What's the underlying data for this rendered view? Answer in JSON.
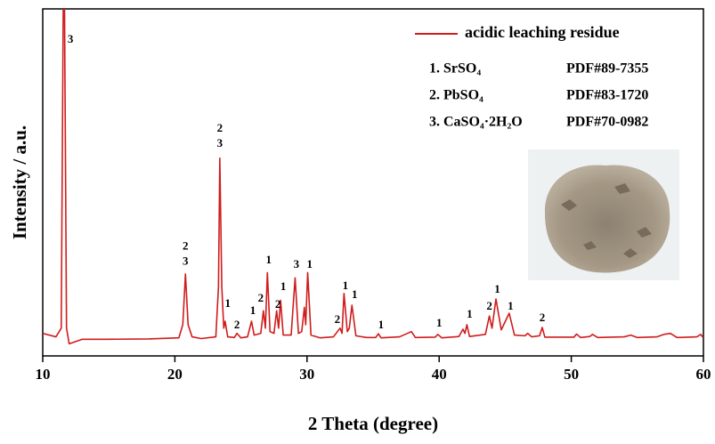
{
  "chart_data": {
    "type": "line",
    "xlabel": "2 Theta (degree)",
    "ylabel": "Intensity / a.u.",
    "xlim": [
      10,
      60
    ],
    "xticks": [
      10,
      20,
      30,
      40,
      50,
      60
    ],
    "ylim": [
      0,
      100
    ],
    "series": [
      {
        "name": "acidic leaching residue",
        "color": "#d01c1c",
        "x": [
          10,
          11.0,
          11.4,
          11.6,
          11.8,
          12.0,
          13,
          15,
          18,
          20.3,
          20.6,
          20.8,
          21.0,
          21.3,
          22,
          23.1,
          23.3,
          23.4,
          23.55,
          23.7,
          23.8,
          24.0,
          24.5,
          24.7,
          25.0,
          25.5,
          25.7,
          25.8,
          26.0,
          26.5,
          26.7,
          26.85,
          27.0,
          27.2,
          27.5,
          27.7,
          27.85,
          28.0,
          28.2,
          28.8,
          29.1,
          29.35,
          29.6,
          29.8,
          29.9,
          30.05,
          30.3,
          31,
          32,
          32.5,
          32.65,
          32.8,
          33.05,
          33.2,
          33.4,
          33.7,
          34.5,
          35.2,
          35.4,
          35.6,
          37,
          37.9,
          38.2,
          39.7,
          39.9,
          40.2,
          41.5,
          41.8,
          41.95,
          42.1,
          42.3,
          43.5,
          43.8,
          44.0,
          44.3,
          44.7,
          45.3,
          45.7,
          46.5,
          46.7,
          47.0,
          47.6,
          47.8,
          48.0,
          50.2,
          50.4,
          50.7,
          51.4,
          51.6,
          52.0,
          54.0,
          54.5,
          55.0,
          56.5,
          57.0,
          57.5,
          58.0,
          59.5,
          59.8,
          60
        ],
        "values": [
          6.5,
          5.5,
          8,
          130,
          8,
          3.5,
          4.8,
          4.8,
          4.9,
          5.2,
          9,
          23.6,
          9,
          5.5,
          5,
          5.5,
          20,
          57,
          20,
          8,
          10,
          5.5,
          5.3,
          6.5,
          5.2,
          5.5,
          8.5,
          10,
          6,
          6.5,
          13,
          8,
          24,
          7,
          6.5,
          13,
          8,
          16,
          6,
          6,
          22.5,
          6.5,
          7,
          14,
          9,
          24,
          6,
          5.2,
          5.5,
          8,
          6.5,
          18,
          7,
          8,
          14.6,
          5.8,
          5.3,
          5.3,
          6.4,
          5.2,
          5.5,
          7,
          5.3,
          5.4,
          6.2,
          5.2,
          5.6,
          7.7,
          6.5,
          9,
          5.6,
          6.2,
          11.5,
          8,
          16.4,
          7.5,
          12.3,
          6,
          5.8,
          6.5,
          5.5,
          5.8,
          8.2,
          5.4,
          5.4,
          6.3,
          5.3,
          5.6,
          6.2,
          5.3,
          5.5,
          6,
          5.3,
          5.5,
          6.2,
          6.5,
          5.3,
          5.5,
          6.2,
          5.2
        ]
      }
    ],
    "phases": [
      {
        "label": "1. SrSO₄",
        "pdf": "PDF#89-7355"
      },
      {
        "label": "2. PbSO₄",
        "pdf": "PDF#83-1720"
      },
      {
        "label": "3. CaSO₄·2H₂O",
        "pdf": "PDF#70-0982"
      }
    ],
    "annotations": [
      {
        "x": 12.1,
        "y": 91,
        "lines": [
          "3"
        ]
      },
      {
        "x": 20.8,
        "y": 27,
        "lines": [
          "2",
          "3"
        ]
      },
      {
        "x": 23.4,
        "y": 61,
        "lines": [
          "2",
          "3"
        ]
      },
      {
        "x": 24.0,
        "y": 14.9,
        "lines": [
          "1"
        ]
      },
      {
        "x": 24.7,
        "y": 8.7,
        "lines": [
          "2"
        ]
      },
      {
        "x": 25.9,
        "y": 12.8,
        "lines": [
          "1"
        ]
      },
      {
        "x": 26.5,
        "y": 16.4,
        "lines": [
          "2"
        ]
      },
      {
        "x": 27.1,
        "y": 27.4,
        "lines": [
          "1"
        ]
      },
      {
        "x": 27.8,
        "y": 14.6,
        "lines": [
          "2"
        ]
      },
      {
        "x": 28.2,
        "y": 19.7,
        "lines": [
          "1"
        ]
      },
      {
        "x": 29.2,
        "y": 26.2,
        "lines": [
          "3"
        ]
      },
      {
        "x": 30.2,
        "y": 26.2,
        "lines": [
          "1"
        ]
      },
      {
        "x": 32.3,
        "y": 10.3,
        "lines": [
          "2"
        ]
      },
      {
        "x": 32.9,
        "y": 20,
        "lines": [
          "1"
        ]
      },
      {
        "x": 33.6,
        "y": 17.4,
        "lines": [
          "1"
        ]
      },
      {
        "x": 35.6,
        "y": 8.7,
        "lines": [
          "1"
        ]
      },
      {
        "x": 40.0,
        "y": 9.2,
        "lines": [
          "1"
        ]
      },
      {
        "x": 42.3,
        "y": 11.8,
        "lines": [
          "1"
        ]
      },
      {
        "x": 43.8,
        "y": 14.1,
        "lines": [
          "2"
        ]
      },
      {
        "x": 44.4,
        "y": 19,
        "lines": [
          "1"
        ]
      },
      {
        "x": 45.4,
        "y": 14.1,
        "lines": [
          "1"
        ]
      },
      {
        "x": 47.8,
        "y": 10.8,
        "lines": [
          "2"
        ]
      }
    ]
  }
}
